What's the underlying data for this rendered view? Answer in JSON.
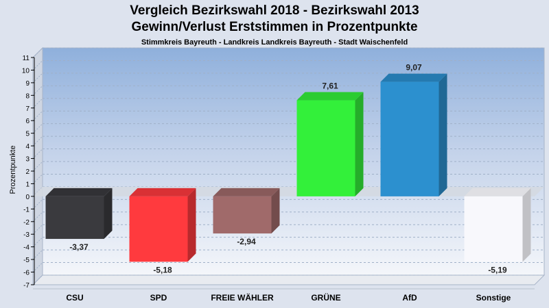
{
  "chart_data": {
    "type": "bar",
    "title": "Vergleich Bezirkswahl 2018 - Bezirkswahl 2013",
    "title_line2": "Gewinn/Verlust Erststimmen in Prozentpunkte",
    "subtitle": "Stimmkreis Bayreuth - Landkreis Landkreis Bayreuth - Stadt Waischenfeld",
    "ylabel": "Prozentpunkte",
    "xlabel": "",
    "ylim": [
      -7,
      11
    ],
    "yticks": [
      "-7",
      "-6",
      "-5",
      "-4",
      "-3",
      "-2",
      "-1",
      "0",
      "1",
      "2",
      "3",
      "4",
      "5",
      "6",
      "7",
      "8",
      "9",
      "10",
      "11"
    ],
    "grid": true,
    "categories": [
      "CSU",
      "SPD",
      "FREIE WÄHLER",
      "GRÜNE",
      "AfD",
      "Sonstige"
    ],
    "values": [
      -3.37,
      -5.18,
      -2.94,
      7.61,
      9.07,
      -5.19
    ],
    "value_labels": [
      "-3,37",
      "-5,18",
      "-2,94",
      "7,61",
      "9,07",
      "-5,19"
    ],
    "colors": [
      "#3a3a3e",
      "#ff3a3e",
      "#a06a6a",
      "#33f03a",
      "#2c90cf",
      "#f8f8fc"
    ]
  }
}
